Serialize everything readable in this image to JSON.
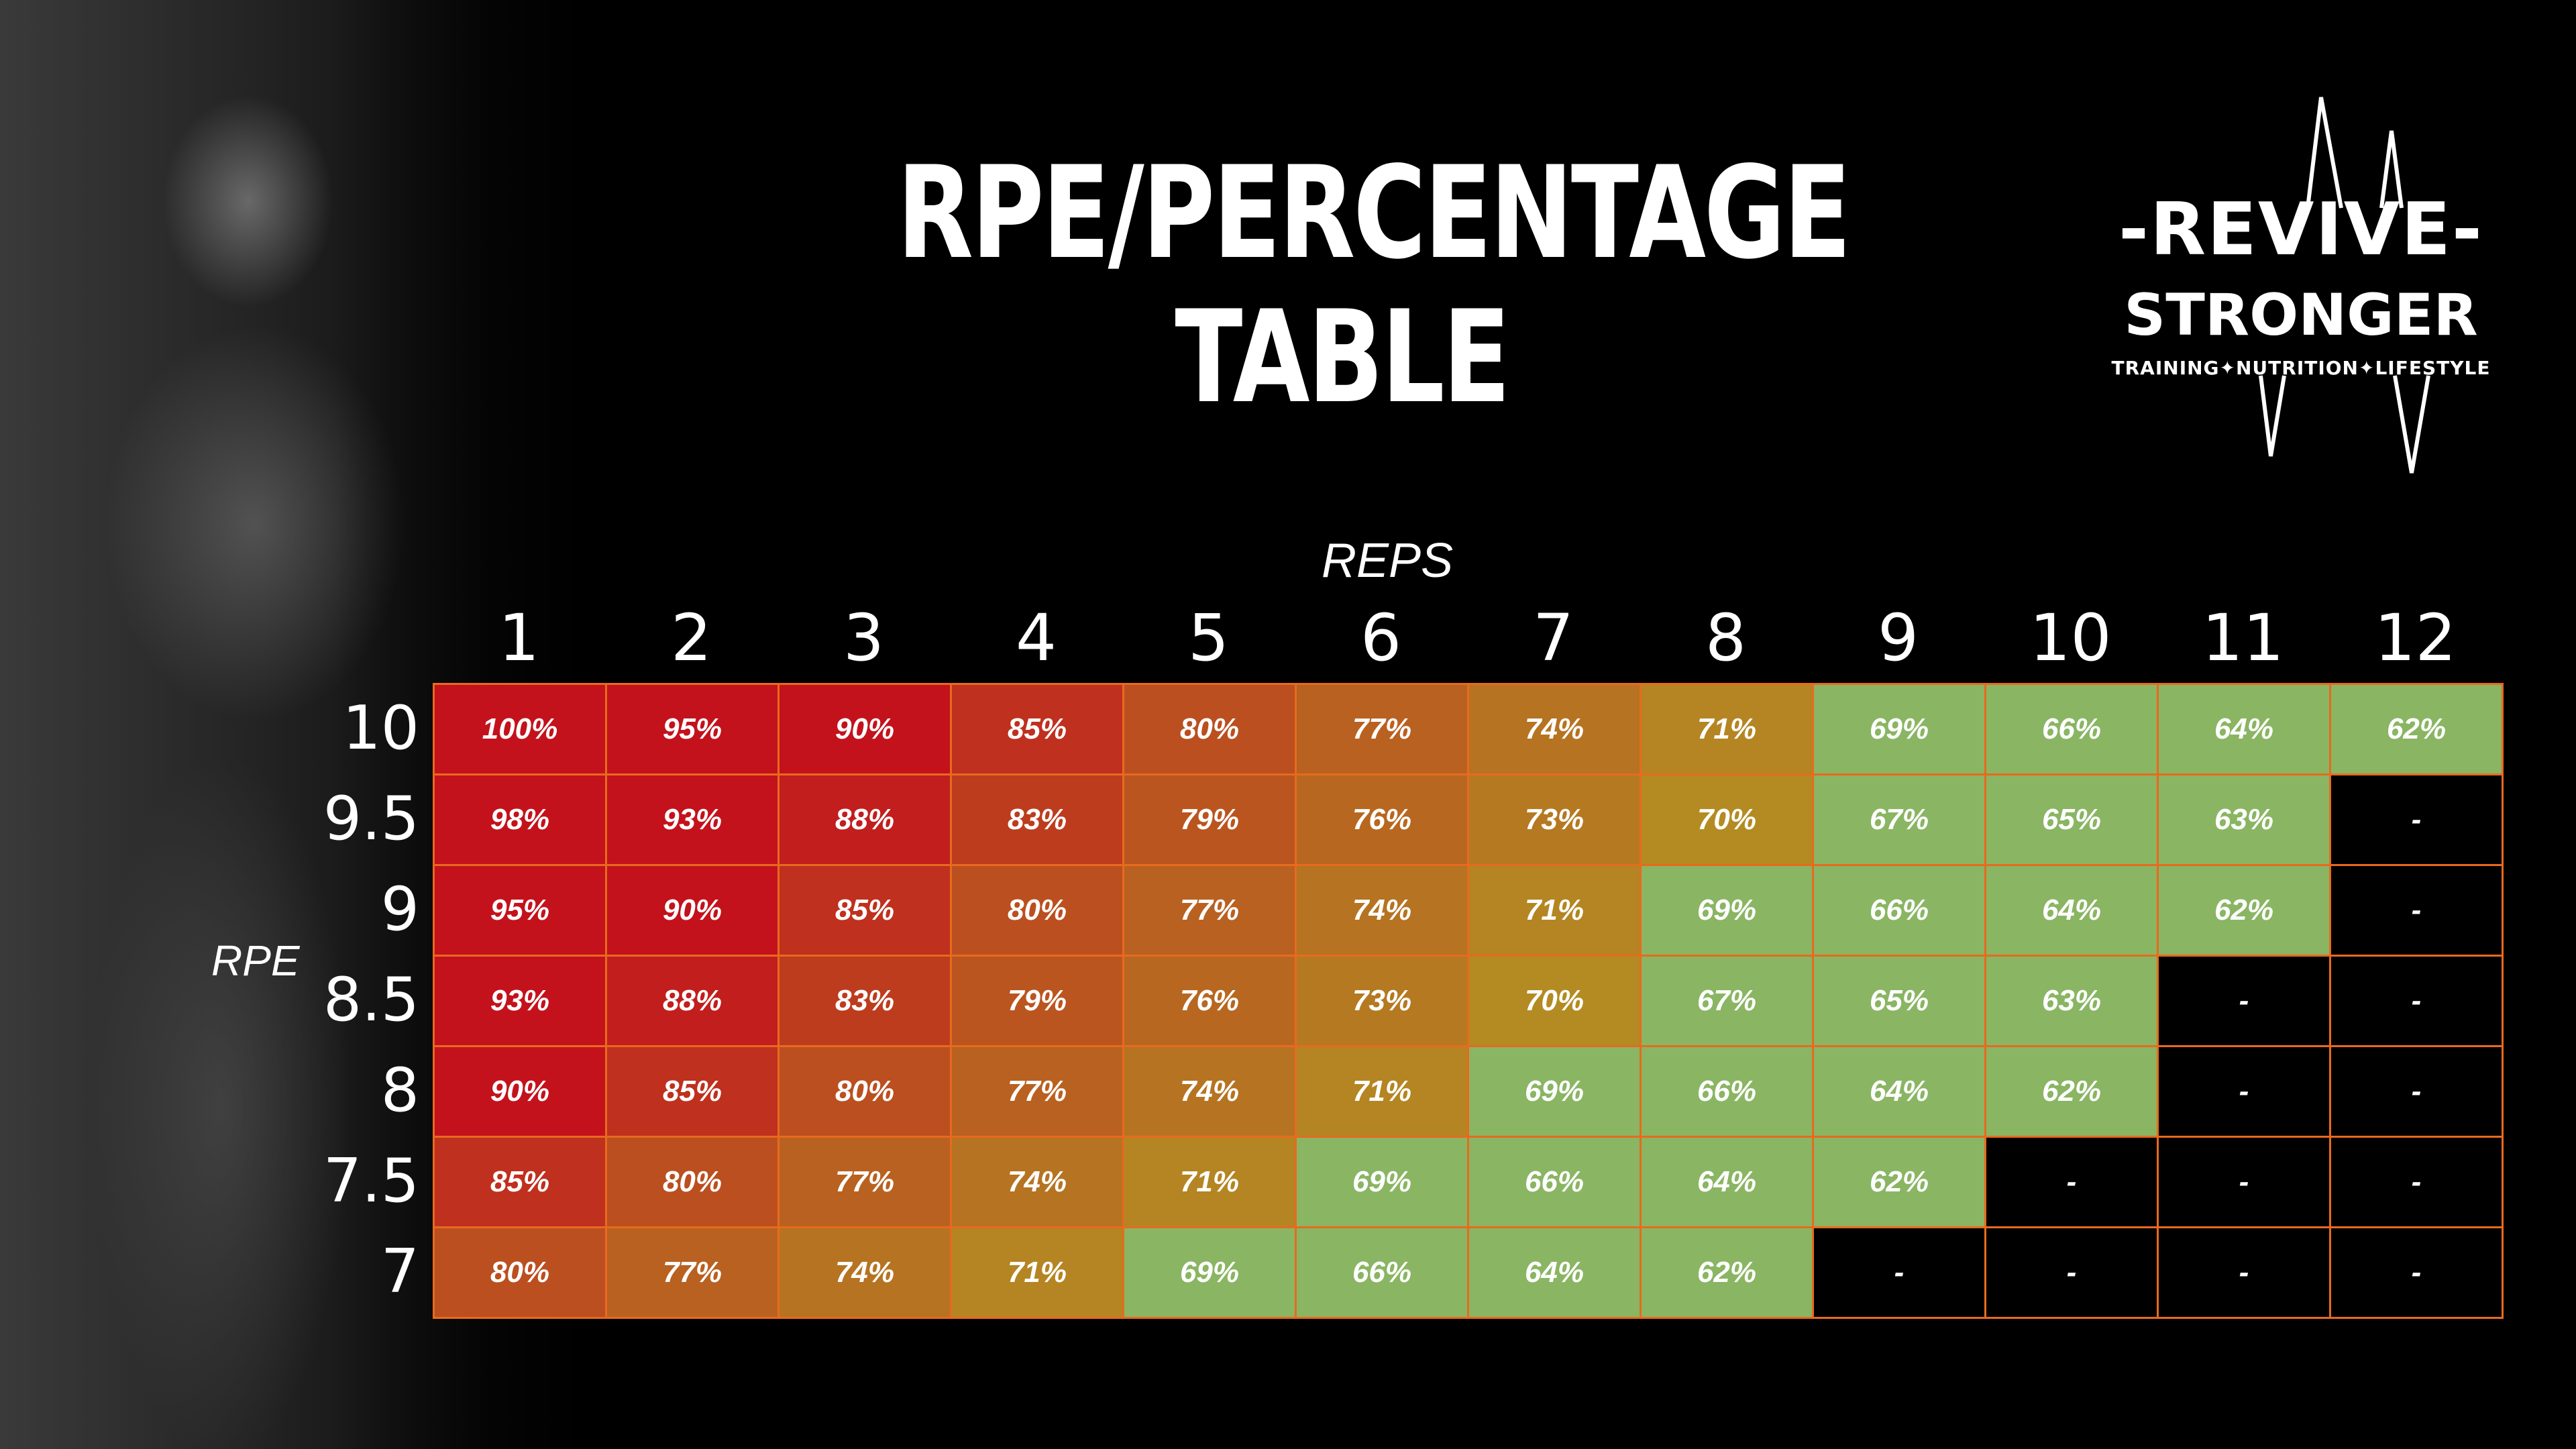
{
  "title": {
    "line1": "RPE/PERCENTAGE",
    "line2": "TABLE"
  },
  "logo": {
    "line1": "-REVIVE-",
    "line2": "STRONGER",
    "line3": "TRAINING✦NUTRITION✦LIFESTYLE"
  },
  "colors": {
    "background": "#000000",
    "grid_border": "#e86a1e",
    "high": "#c3121c",
    "mid": "#b38b22",
    "low": "#8ab563",
    "empty": "#000000"
  },
  "chart_data": {
    "type": "table",
    "title": "RPE/PERCENTAGE TABLE",
    "xlabel": "REPS",
    "ylabel": "RPE",
    "columns": [
      "1",
      "2",
      "3",
      "4",
      "5",
      "6",
      "7",
      "8",
      "9",
      "10",
      "11",
      "12"
    ],
    "rows": [
      {
        "rpe": "10",
        "values": [
          "100%",
          "95%",
          "90%",
          "85%",
          "80%",
          "77%",
          "74%",
          "71%",
          "69%",
          "66%",
          "64%",
          "62%"
        ]
      },
      {
        "rpe": "9.5",
        "values": [
          "98%",
          "93%",
          "88%",
          "83%",
          "79%",
          "76%",
          "73%",
          "70%",
          "67%",
          "65%",
          "63%",
          "-"
        ]
      },
      {
        "rpe": "9",
        "values": [
          "95%",
          "90%",
          "85%",
          "80%",
          "77%",
          "74%",
          "71%",
          "69%",
          "66%",
          "64%",
          "62%",
          "-"
        ]
      },
      {
        "rpe": "8.5",
        "values": [
          "93%",
          "88%",
          "83%",
          "79%",
          "76%",
          "73%",
          "70%",
          "67%",
          "65%",
          "63%",
          "-",
          "-"
        ]
      },
      {
        "rpe": "8",
        "values": [
          "90%",
          "85%",
          "80%",
          "77%",
          "74%",
          "71%",
          "69%",
          "66%",
          "64%",
          "62%",
          "-",
          "-"
        ]
      },
      {
        "rpe": "7.5",
        "values": [
          "85%",
          "80%",
          "77%",
          "74%",
          "71%",
          "69%",
          "66%",
          "64%",
          "62%",
          "-",
          "-",
          "-"
        ]
      },
      {
        "rpe": "7",
        "values": [
          "80%",
          "77%",
          "74%",
          "71%",
          "69%",
          "66%",
          "64%",
          "62%",
          "-",
          "-",
          "-",
          "-"
        ]
      }
    ]
  }
}
